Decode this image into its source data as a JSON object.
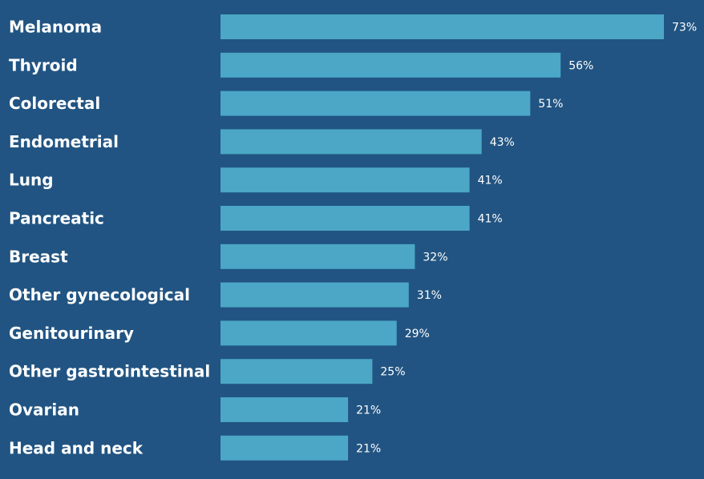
{
  "chart_data": {
    "type": "bar",
    "orientation": "horizontal",
    "title": "",
    "xlabel": "",
    "ylabel": "",
    "grid": false,
    "categories": [
      "Melanoma",
      "Thyroid",
      "Colorectal",
      "Endometrial",
      "Lung",
      "Pancreatic",
      "Breast",
      "Other gynecological",
      "Genitourinary",
      "Other gastrointestinal",
      "Ovarian",
      "Head and neck"
    ],
    "values": [
      73,
      56,
      51,
      43,
      41,
      41,
      32,
      31,
      29,
      25,
      21,
      21
    ],
    "value_labels": [
      "73%",
      "56%",
      "51%",
      "43%",
      "41%",
      "41%",
      "32%",
      "31%",
      "29%",
      "25%",
      "21%",
      "21%"
    ],
    "xlim": [
      0,
      73
    ],
    "colors": {
      "background": "#215482",
      "bar": "#4BA7C5",
      "text": "#FFFFFF"
    }
  }
}
